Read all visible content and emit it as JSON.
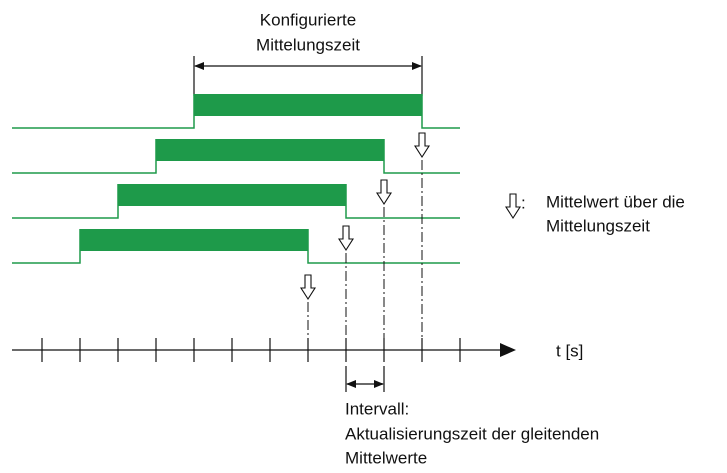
{
  "title": [
    "Konfigurierte",
    "Mittelungszeit"
  ],
  "legend": {
    "symbol": ":",
    "text": [
      "Mittelwert über die",
      "Mittelungszeit"
    ]
  },
  "axis_label": "t [s]",
  "interval": {
    "label": "Intervall:",
    "text": [
      "Aktualisierungszeit der gleitenden",
      "Mittelwerte"
    ]
  }
}
